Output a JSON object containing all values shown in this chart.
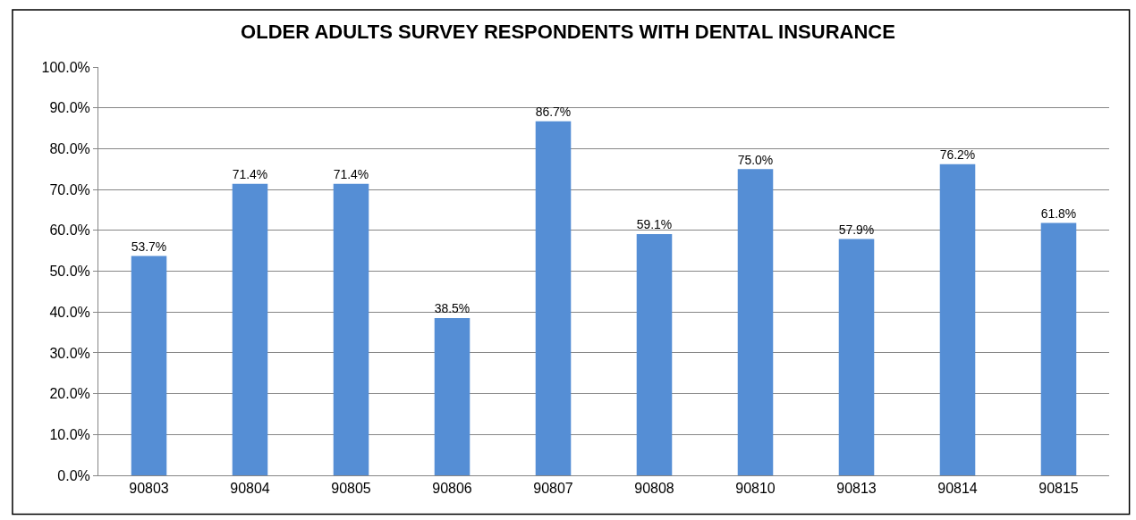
{
  "chart_data": {
    "type": "bar",
    "title": "OLDER ADULTS SURVEY RESPONDENTS WITH DENTAL INSURANCE",
    "categories": [
      "90803",
      "90804",
      "90805",
      "90806",
      "90807",
      "90808",
      "90810",
      "90813",
      "90814",
      "90815"
    ],
    "values": [
      53.7,
      71.4,
      71.4,
      38.5,
      86.7,
      59.1,
      75.0,
      57.9,
      76.2,
      61.8
    ],
    "value_labels": [
      "53.7%",
      "71.4%",
      "71.4%",
      "38.5%",
      "86.7%",
      "59.1%",
      "75.0%",
      "57.9%",
      "76.2%",
      "61.8%"
    ],
    "color": "#558ed5",
    "ylim": [
      0,
      100
    ],
    "yticks": [
      {
        "value": 0,
        "label": "0.0%"
      },
      {
        "value": 10,
        "label": "10.0%"
      },
      {
        "value": 20,
        "label": "20.0%"
      },
      {
        "value": 30,
        "label": "30.0%"
      },
      {
        "value": 40,
        "label": "40.0%"
      },
      {
        "value": 50,
        "label": "50.0%"
      },
      {
        "value": 60,
        "label": "60.0%"
      },
      {
        "value": 70,
        "label": "70.0%"
      },
      {
        "value": 80,
        "label": "80.0%"
      },
      {
        "value": 90,
        "label": "90.0%"
      },
      {
        "value": 100,
        "label": "100.0%"
      }
    ],
    "grid": "y",
    "legend": false
  }
}
